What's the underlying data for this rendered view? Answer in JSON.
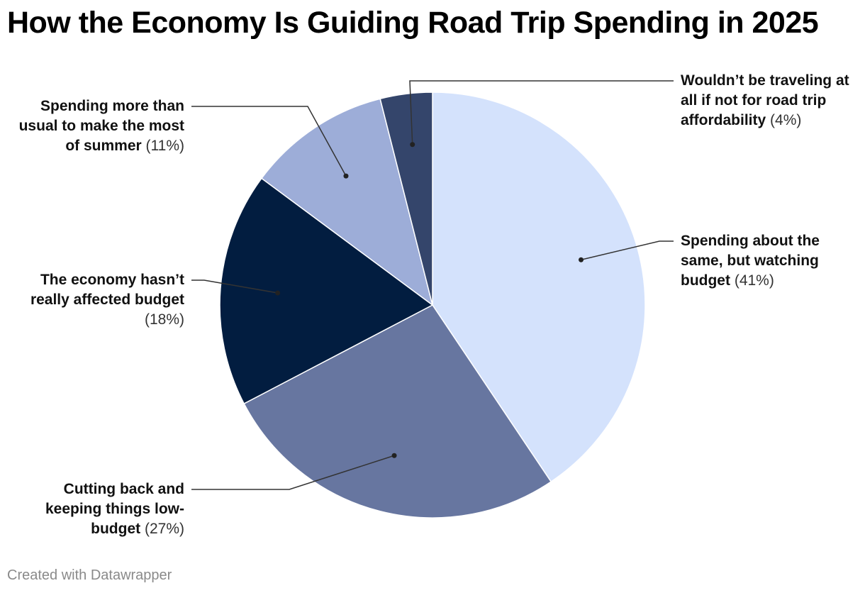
{
  "title": "How the Economy Is Guiding Road Trip Spending in 2025",
  "footer": "Created with Datawrapper",
  "chart_data": {
    "type": "pie",
    "title": "How the Economy Is Guiding Road Trip Spending in 2025",
    "slices": [
      {
        "label": "Spending about the same, but watching budget",
        "value": 41,
        "display": "(41%)",
        "color": "#d4e2fc"
      },
      {
        "label": "Cutting back and keeping things low-budget",
        "value": 27,
        "display": "(27%)",
        "color": "#6776a0"
      },
      {
        "label": "The economy hasn’t really affected budget",
        "value": 18,
        "display": "(18%)",
        "color": "#021d40"
      },
      {
        "label": "Spending more than usual to make the most of summer",
        "value": 11,
        "display": "(11%)",
        "color": "#9dadd8"
      },
      {
        "label": "Wouldn’t be traveling at all if not for road trip affordability",
        "value": 4,
        "display": "(4%)",
        "color": "#34456b"
      }
    ]
  }
}
